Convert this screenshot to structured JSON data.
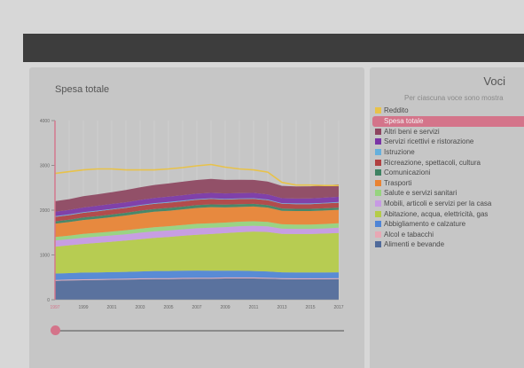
{
  "chart_title": "Spesa totale",
  "voci": {
    "title": "Voci",
    "subtitle": "Per ciascuna voce sono mostra",
    "items": [
      {
        "label": "Reddito",
        "color": "#e8c24a"
      },
      {
        "label": "Spesa totale",
        "color": "#d4748a",
        "active": true
      },
      {
        "label": "Altri beni e servizi",
        "color": "#8d4560"
      },
      {
        "label": "Servizi ricettivi e ristorazione",
        "color": "#7a35a6"
      },
      {
        "label": "Istruzione",
        "color": "#66b0dc"
      },
      {
        "label": "Ricreazione, spettacoli, cultura",
        "color": "#b04141"
      },
      {
        "label": "Comunicazioni",
        "color": "#3e8262"
      },
      {
        "label": "Trasporti",
        "color": "#e98333"
      },
      {
        "label": "Salute e servizi sanitari",
        "color": "#96d47e"
      },
      {
        "label": "Mobili, articoli e servizi per la casa",
        "color": "#c79ae4"
      },
      {
        "label": "Abitazione, acqua, elettricità, gas",
        "color": "#b5cc48"
      },
      {
        "label": "Abbigliamento e calzature",
        "color": "#4f85d6"
      },
      {
        "label": "Alcol e tabacchi",
        "color": "#e8a8b4"
      },
      {
        "label": "Alimenti e bevande",
        "color": "#506a9a"
      }
    ]
  },
  "slider": {
    "value": "1997"
  },
  "chart_data": {
    "type": "area",
    "stacked": true,
    "x": [
      1997,
      1998,
      1999,
      2000,
      2001,
      2002,
      2003,
      2004,
      2005,
      2006,
      2007,
      2008,
      2009,
      2010,
      2011,
      2012,
      2013,
      2014,
      2015,
      2016,
      2017
    ],
    "xticks": [
      "1997",
      "1999",
      "2001",
      "2003",
      "2005",
      "2007",
      "2009",
      "2011",
      "2013",
      "2015",
      "2017"
    ],
    "highlight_tick": "1997",
    "yticks": [
      "0",
      "1000",
      "2000",
      "3000",
      "4000"
    ],
    "ylim": [
      0,
      4000
    ],
    "grid": true,
    "series": [
      {
        "name": "Alimenti e bevande",
        "color": "#506a9a",
        "values": [
          420,
          430,
          435,
          440,
          445,
          450,
          455,
          460,
          460,
          465,
          470,
          470,
          475,
          475,
          475,
          470,
          460,
          455,
          455,
          455,
          460
        ]
      },
      {
        "name": "Alcol e tabacchi",
        "color": "#e8a8b4",
        "values": [
          20,
          20,
          20,
          20,
          20,
          22,
          22,
          22,
          22,
          22,
          22,
          22,
          22,
          22,
          22,
          22,
          22,
          22,
          22,
          22,
          22
        ]
      },
      {
        "name": "Abbigliamento e calzature",
        "color": "#4f85d6",
        "values": [
          145,
          145,
          150,
          150,
          150,
          150,
          155,
          160,
          160,
          160,
          160,
          155,
          150,
          150,
          145,
          140,
          130,
          130,
          130,
          130,
          130
        ]
      },
      {
        "name": "Abitazione, acqua, elettricità, gas",
        "color": "#b5cc48",
        "values": [
          600,
          620,
          640,
          660,
          680,
          700,
          720,
          740,
          760,
          780,
          800,
          820,
          840,
          860,
          880,
          880,
          860,
          860,
          860,
          870,
          880
        ]
      },
      {
        "name": "Mobili, articoli e servizi per la casa",
        "color": "#c79ae4",
        "values": [
          135,
          135,
          140,
          140,
          140,
          140,
          145,
          145,
          145,
          145,
          145,
          140,
          135,
          135,
          130,
          125,
          115,
          115,
          115,
          115,
          115
        ]
      },
      {
        "name": "Salute e servizi sanitari",
        "color": "#96d47e",
        "values": [
          80,
          80,
          85,
          85,
          88,
          90,
          90,
          92,
          95,
          95,
          98,
          100,
          100,
          100,
          100,
          100,
          98,
          98,
          98,
          100,
          100
        ]
      },
      {
        "name": "Trasporti",
        "color": "#e98333",
        "values": [
          300,
          305,
          310,
          315,
          320,
          330,
          340,
          345,
          345,
          350,
          355,
          360,
          340,
          330,
          330,
          320,
          300,
          300,
          300,
          300,
          300
        ]
      },
      {
        "name": "Comunicazioni",
        "color": "#3e8262",
        "values": [
          50,
          52,
          55,
          58,
          60,
          60,
          62,
          62,
          62,
          62,
          62,
          62,
          60,
          60,
          58,
          55,
          52,
          50,
          50,
          50,
          50
        ]
      },
      {
        "name": "Ricreazione, spettacoli, cultura",
        "color": "#b04141",
        "values": [
          100,
          102,
          105,
          108,
          110,
          110,
          112,
          115,
          118,
          120,
          120,
          120,
          115,
          115,
          112,
          110,
          105,
          105,
          105,
          108,
          110
        ]
      },
      {
        "name": "Istruzione",
        "color": "#66b0dc",
        "values": [
          15,
          15,
          15,
          15,
          15,
          15,
          15,
          16,
          16,
          16,
          16,
          16,
          16,
          16,
          16,
          16,
          15,
          15,
          15,
          15,
          15
        ]
      },
      {
        "name": "Servizi ricettivi e ristorazione",
        "color": "#7a35a6",
        "values": [
          100,
          102,
          105,
          108,
          110,
          110,
          112,
          115,
          118,
          120,
          120,
          122,
          122,
          120,
          118,
          115,
          110,
          110,
          112,
          115,
          118
        ]
      },
      {
        "name": "Altri beni e servizi",
        "color": "#8d4560",
        "values": [
          235,
          240,
          250,
          255,
          262,
          273,
          282,
          290,
          295,
          300,
          305,
          310,
          300,
          295,
          290,
          285,
          275,
          270,
          270,
          272,
          275
        ]
      }
    ],
    "line_series": [
      {
        "name": "Reddito",
        "color": "#e8c24a",
        "values": [
          2820,
          2860,
          2900,
          2920,
          2920,
          2900,
          2900,
          2900,
          2920,
          2950,
          2990,
          3020,
          2960,
          2920,
          2900,
          2850,
          2620,
          2560,
          2560,
          2550,
          2550
        ]
      }
    ]
  }
}
